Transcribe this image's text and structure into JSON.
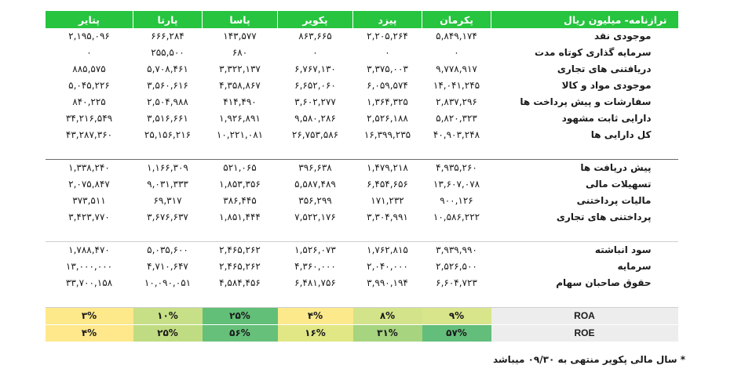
{
  "header": {
    "title": "ترازنامه- میلیون ریال",
    "companies": [
      "پکرمان",
      "پیزد",
      "پکویر",
      "پاسا",
      "پارتا",
      "پتایر"
    ]
  },
  "assets": [
    {
      "label": "موجودی نقد",
      "values": [
        "۵,۸۴۹,۱۷۴",
        "۲,۲۰۵,۲۶۴",
        "۸۶۳,۶۶۵",
        "۱۴۳,۵۷۷",
        "۶۶۶,۲۸۴",
        "۲,۱۹۵,۰۹۶"
      ]
    },
    {
      "label": "سرمایه گذاری کوتاه مدت",
      "values": [
        "۰",
        "۰",
        "۰",
        "۶۸۰",
        "۲۵۵,۵۰۰",
        "۰"
      ]
    },
    {
      "label": "دریافتنی های تجاری",
      "values": [
        "۹,۷۷۸,۹۱۷",
        "۳,۳۷۵,۰۰۳",
        "۶,۷۶۷,۱۳۰",
        "۳,۳۲۲,۱۳۷",
        "۵,۷۰۸,۴۶۱",
        "۸۸۵,۵۷۵"
      ]
    },
    {
      "label": "موجودی مواد و کالا",
      "values": [
        "۱۴,۰۴۱,۲۴۵",
        "۶,۰۵۹,۵۷۴",
        "۶,۶۵۲,۰۶۰",
        "۴,۳۵۸,۸۶۷",
        "۳,۵۶۰,۶۱۶",
        "۵,۰۴۵,۲۲۶"
      ]
    },
    {
      "label": "سفارشات و پیش پرداخت ها",
      "values": [
        "۲,۸۳۷,۲۹۶",
        "۱,۳۶۴,۳۲۵",
        "۳,۶۰۲,۲۷۷",
        "۴۱۴,۴۹۰",
        "۲,۵۰۴,۹۸۸",
        "۸۴۰,۲۲۵"
      ]
    },
    {
      "label": "دارایی ثابت مشهود",
      "values": [
        "۵,۸۲۰,۳۲۳",
        "۲,۵۲۶,۱۸۸",
        "۹,۵۸۰,۲۸۶",
        "۱,۹۲۶,۸۹۱",
        "۳,۵۱۶,۶۶۱",
        "۳۴,۲۱۶,۵۴۹"
      ]
    },
    {
      "label": "کل دارایی ها",
      "values": [
        "۴۰,۹۰۳,۲۴۸",
        "۱۶,۳۹۹,۲۳۵",
        "۲۶,۷۵۳,۵۸۶",
        "۱۰,۲۲۱,۰۸۱",
        "۲۵,۱۵۶,۲۱۶",
        "۴۳,۲۸۷,۳۶۰"
      ]
    }
  ],
  "liabilities": [
    {
      "label": "پیش دریافت ها",
      "values": [
        "۴,۹۳۵,۲۶۰",
        "۱,۴۷۹,۲۱۸",
        "۳۹۶,۶۳۸",
        "۵۲۱,۰۶۵",
        "۱,۱۶۶,۳۰۹",
        "۱,۳۳۸,۲۴۰"
      ]
    },
    {
      "label": "تسهیلات مالی",
      "values": [
        "۱۳,۶۰۷,۰۷۸",
        "۶,۴۵۴,۶۵۶",
        "۵,۵۸۷,۴۸۹",
        "۱,۸۵۳,۳۵۶",
        "۹,۰۳۱,۳۳۳",
        "۲,۰۷۵,۸۴۷"
      ]
    },
    {
      "label": "مالیات پرداختنی",
      "values": [
        "۹۰۰,۱۲۶",
        "۱۷۱,۲۳۲",
        "۳۵۶,۲۹۹",
        "۳۸۶,۴۴۵",
        "۶۹,۳۱۷",
        "۳۷۳,۵۱۱"
      ]
    },
    {
      "label": "پرداختنی های تجاری",
      "values": [
        "۱۰,۵۸۶,۲۲۲",
        "۳,۳۰۴,۹۹۱",
        "۷,۵۲۲,۱۷۶",
        "۱,۸۵۱,۴۴۴",
        "۳,۶۷۶,۶۳۷",
        "۳,۴۲۳,۷۷۰"
      ]
    }
  ],
  "equity": [
    {
      "label": "سود انباشته",
      "values": [
        "۳,۹۳۹,۹۹۰",
        "۱,۷۶۲,۸۱۵",
        "۱,۵۲۶,۰۷۳",
        "۲,۴۶۵,۲۶۲",
        "۵,۰۳۵,۶۰۰",
        "۱,۷۸۸,۴۷۰"
      ]
    },
    {
      "label": "سرمایه",
      "values": [
        "۲,۵۲۶,۵۰۰",
        "۲,۰۴۰,۰۰۰",
        "۴,۳۶۰,۰۰۰",
        "۲,۴۶۵,۲۶۲",
        "۴,۷۱۰,۶۴۷",
        "۱۳,۰۰۰,۰۰۰"
      ]
    },
    {
      "label": "حقوق صاحبان سهام",
      "values": [
        "۶,۶۰۴,۷۲۳",
        "۳,۹۹۰,۱۹۴",
        "۶,۴۸۱,۷۵۶",
        "۴,۵۸۴,۴۵۶",
        "۱۰,۰۹۰,۰۵۱",
        "۳۳,۷۰۰,۱۵۸"
      ]
    }
  ],
  "ratios": [
    {
      "label": "ROA",
      "values": [
        "۹%",
        "۸%",
        "۴%",
        "۲۵%",
        "۱۰%",
        "۳%"
      ],
      "colors": [
        "#d8e58a",
        "#d3e38a",
        "#fce98c",
        "#62bf78",
        "#c7df86",
        "#fde88a"
      ]
    },
    {
      "label": "ROE",
      "values": [
        "۵۷%",
        "۳۱%",
        "۱۶%",
        "۵۶%",
        "۲۵%",
        "۴%"
      ],
      "colors": [
        "#63be7b",
        "#a6d47f",
        "#e0e784",
        "#66c07a",
        "#c0dc82",
        "#fee88b"
      ]
    }
  ],
  "ratio_label_bg": "#ededed",
  "header_color": "#27c43f",
  "note": "* سال مالی پکویر منتهی به ۰۹/۳۰ میباشد"
}
